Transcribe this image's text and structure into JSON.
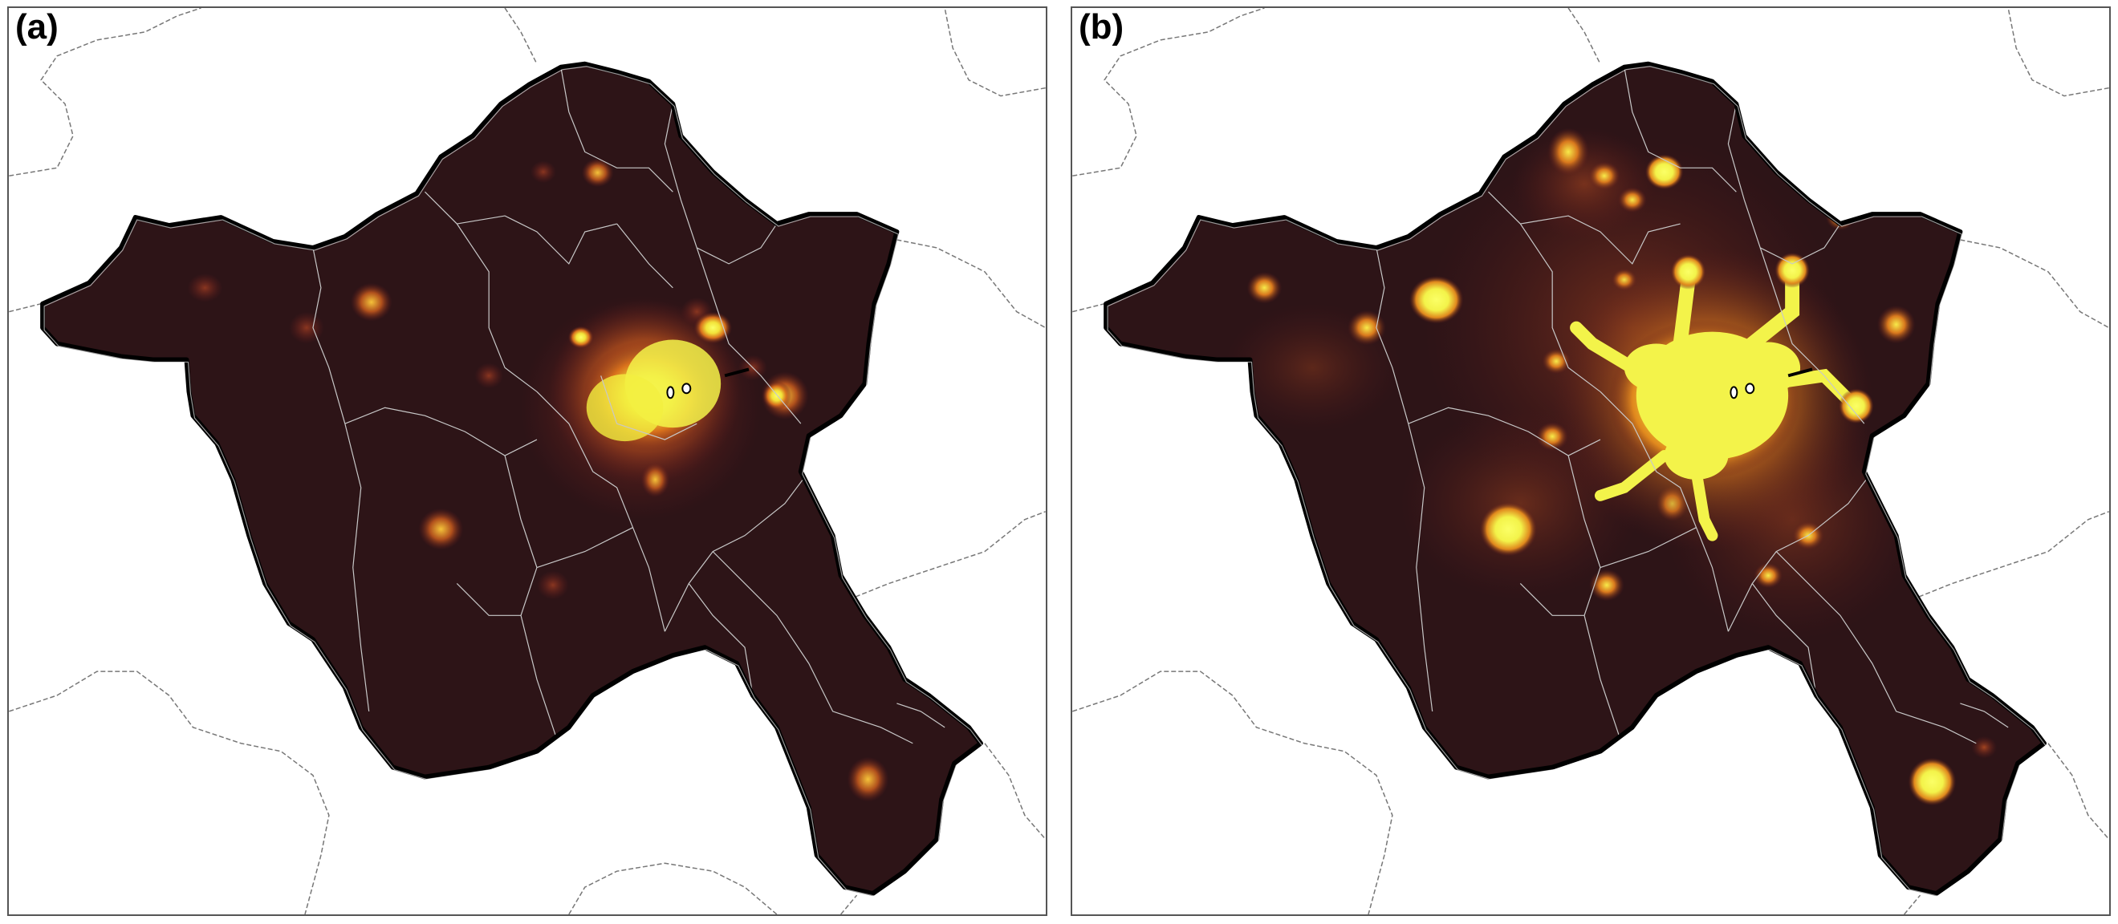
{
  "panels": [
    {
      "id": "a",
      "label": "(a)"
    },
    {
      "id": "b",
      "label": "(b)"
    }
  ],
  "colors": {
    "background_land": "#2d1417",
    "low": "#5e1a1c",
    "mid": "#a8451d",
    "high": "#e9901d",
    "peak": "#f3f34a",
    "boundary": "#000000",
    "district_lines": "#cfcfcf",
    "neighbor_lines": "#777777"
  }
}
